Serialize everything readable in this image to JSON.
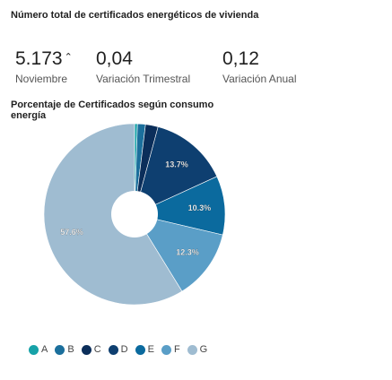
{
  "header": {
    "title": "Número total de certificados energéticos de vivienda"
  },
  "kpis": [
    {
      "value": "5.173",
      "trend": "⌃",
      "label": "Noviembre"
    },
    {
      "value": "0,04",
      "label": "Variación Trimestral"
    },
    {
      "value": "0,12",
      "label": "Variación Anual"
    }
  ],
  "chart_data": {
    "type": "pie",
    "subtitle": "Porcentaje de Certificados según consumo energía",
    "categories": [
      "A",
      "B",
      "C",
      "D",
      "E",
      "F",
      "G"
    ],
    "values": [
      0.5,
      1.4,
      2.2,
      13.7,
      10.3,
      12.3,
      57.6
    ],
    "data_labels": [
      "",
      "",
      "",
      "13.7%",
      "10.3%",
      "12.3%",
      "57.6%"
    ],
    "colors": [
      "#17A2A8",
      "#1B6F9C",
      "#0B2E5A",
      "#0E3F70",
      "#0B6A9E",
      "#5A9EC7",
      "#9FBCD1"
    ],
    "legend_position": "bottom",
    "donut": true
  }
}
